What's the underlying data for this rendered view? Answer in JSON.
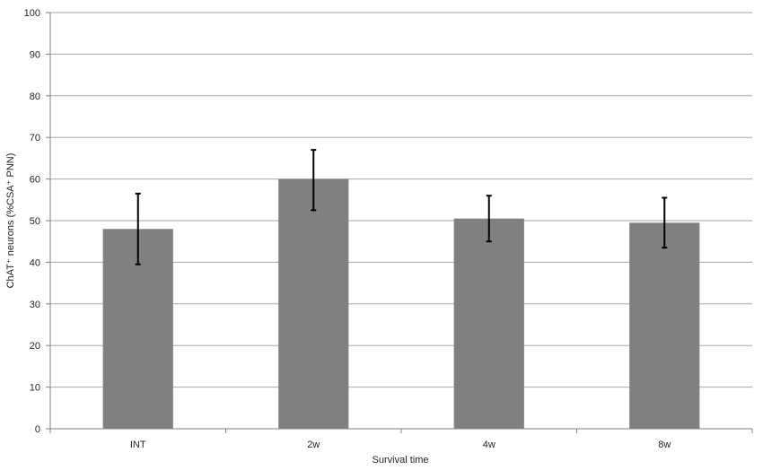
{
  "chart_data": {
    "type": "bar",
    "categories": [
      "INT",
      "2w",
      "4w",
      "8w"
    ],
    "values": [
      48,
      60,
      50.5,
      49.5
    ],
    "error_bars": [
      {
        "low": 39.5,
        "high": 56.5
      },
      {
        "low": 52.5,
        "high": 67.0
      },
      {
        "low": 45.0,
        "high": 56.0
      },
      {
        "low": 43.5,
        "high": 55.5
      }
    ],
    "title": "",
    "xlabel": "Survival time",
    "ylabel": "ChAT⁺ neurons (%CSA⁺ PNN)",
    "ylim": [
      0,
      100
    ],
    "yticks": [
      0,
      10,
      20,
      30,
      40,
      50,
      60,
      70,
      80,
      90,
      100
    ],
    "grid": true,
    "bar_color": "#808080",
    "grid_color": "#a6a6a6"
  }
}
